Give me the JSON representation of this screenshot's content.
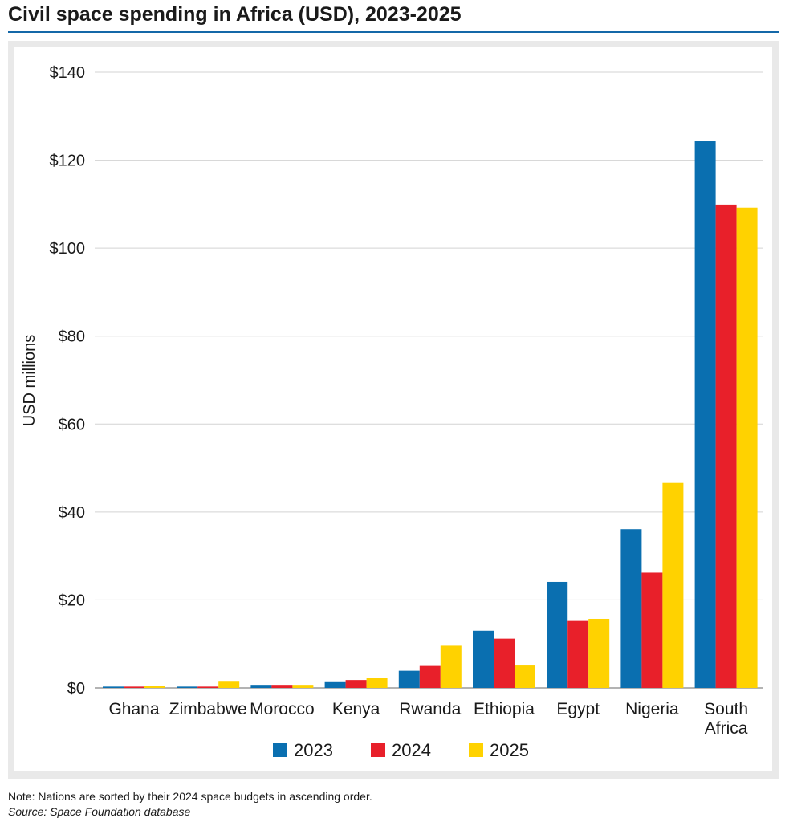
{
  "header": {
    "title": "Civil space spending in Africa (USD), 2023-2025"
  },
  "footer": {
    "note": "Note: Nations are sorted by their 2024 space budgets in ascending order.",
    "source": "Source: Space Foundation database"
  },
  "colors": {
    "accent_rule": "#1468a8",
    "series_2023": "#0a6fb0",
    "series_2024": "#e8202a",
    "series_2025": "#ffd200"
  },
  "chart_data": {
    "type": "bar",
    "title": "Civil space spending in Africa (USD), 2023-2025",
    "xlabel": "",
    "ylabel": "USD millions",
    "ylim": [
      0,
      140
    ],
    "yticks": [
      0,
      20,
      40,
      60,
      80,
      100,
      120,
      140
    ],
    "ytick_labels": [
      "$0",
      "$20",
      "$40",
      "$60",
      "$80",
      "$100",
      "$120",
      "$140"
    ],
    "grid": true,
    "legend_position": "bottom",
    "categories": [
      [
        "Ghana"
      ],
      [
        "Zimbabwe"
      ],
      [
        "Morocco"
      ],
      [
        "Kenya"
      ],
      [
        "Rwanda"
      ],
      [
        "Ethiopia"
      ],
      [
        "Egypt"
      ],
      [
        "Nigeria"
      ],
      [
        "South",
        "Africa"
      ]
    ],
    "series": [
      {
        "name": "2023",
        "color": "#0a6fb0",
        "values": [
          0.3,
          0.3,
          0.7,
          1.5,
          3.9,
          13.0,
          24.1,
          36.1,
          124.3
        ]
      },
      {
        "name": "2024",
        "color": "#e8202a",
        "values": [
          0.3,
          0.3,
          0.7,
          1.8,
          5.0,
          11.2,
          15.4,
          26.2,
          109.9
        ]
      },
      {
        "name": "2025",
        "color": "#ffd200",
        "values": [
          0.4,
          1.6,
          0.7,
          2.2,
          9.6,
          5.1,
          15.7,
          46.6,
          109.2
        ]
      }
    ]
  }
}
